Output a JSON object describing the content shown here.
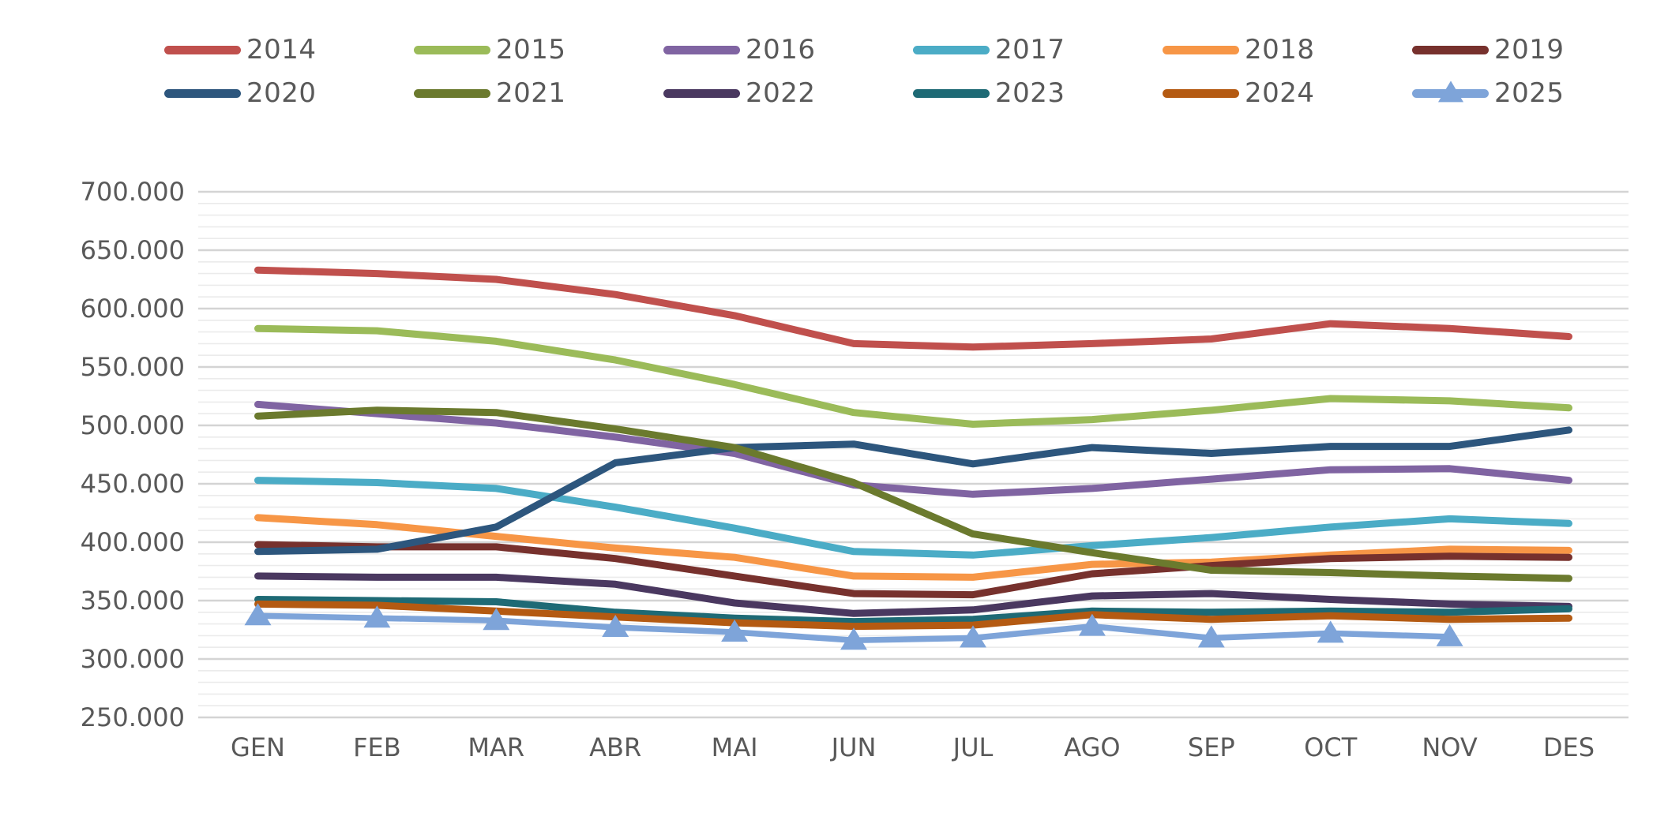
{
  "chart_data": {
    "type": "line",
    "title": "",
    "xlabel": "",
    "ylabel": "",
    "categories": [
      "GEN",
      "FEB",
      "MAR",
      "ABR",
      "MAI",
      "JUN",
      "JUL",
      "AGO",
      "SEP",
      "OCT",
      "NOV",
      "DES"
    ],
    "series": [
      {
        "name": "2014",
        "color": "#C0504D",
        "marker": "none",
        "values": [
          633000,
          630000,
          625000,
          612000,
          594000,
          570000,
          567000,
          570000,
          574000,
          587000,
          583000,
          576000
        ]
      },
      {
        "name": "2015",
        "color": "#9BBB59",
        "marker": "none",
        "values": [
          583000,
          581000,
          572000,
          556000,
          535000,
          511000,
          501000,
          505000,
          513000,
          523000,
          521000,
          515000
        ]
      },
      {
        "name": "2016",
        "color": "#8064A2",
        "marker": "none",
        "values": [
          518000,
          510000,
          502000,
          490000,
          476000,
          449000,
          441000,
          446000,
          454000,
          462000,
          463000,
          453000
        ]
      },
      {
        "name": "2017",
        "color": "#4BACC6",
        "marker": "none",
        "values": [
          453000,
          451000,
          446000,
          430000,
          412000,
          392000,
          389000,
          397000,
          404000,
          413000,
          420000,
          416000
        ]
      },
      {
        "name": "2018",
        "color": "#F79646",
        "marker": "none",
        "values": [
          421000,
          415000,
          405000,
          395000,
          387000,
          371000,
          370000,
          381000,
          383000,
          389000,
          394000,
          393000
        ]
      },
      {
        "name": "2019",
        "color": "#77312D",
        "marker": "none",
        "values": [
          398000,
          396000,
          396000,
          386000,
          371000,
          356000,
          355000,
          373000,
          380000,
          386000,
          388000,
          387000
        ]
      },
      {
        "name": "2020",
        "color": "#2D567D",
        "marker": "none",
        "values": [
          392000,
          394000,
          413000,
          468000,
          481000,
          484000,
          467000,
          481000,
          476000,
          482000,
          482000,
          496000
        ]
      },
      {
        "name": "2021",
        "color": "#6B7A2E",
        "marker": "none",
        "values": [
          508000,
          513000,
          511000,
          497000,
          481000,
          451000,
          407000,
          391000,
          376000,
          374000,
          371000,
          369000
        ]
      },
      {
        "name": "2022",
        "color": "#4A3860",
        "marker": "none",
        "values": [
          371000,
          370000,
          370000,
          364000,
          348000,
          339000,
          342000,
          354000,
          356000,
          351000,
          347000,
          345000
        ]
      },
      {
        "name": "2023",
        "color": "#1E6A75",
        "marker": "none",
        "values": [
          351000,
          350000,
          349000,
          340000,
          335000,
          332000,
          334000,
          341000,
          340000,
          341000,
          340000,
          343000
        ]
      },
      {
        "name": "2024",
        "color": "#B45A12",
        "marker": "none",
        "values": [
          347000,
          346000,
          341000,
          336000,
          331000,
          328000,
          329000,
          338000,
          334000,
          337000,
          334000,
          335000
        ]
      },
      {
        "name": "2025",
        "color": "#7EA4D9",
        "marker": "triangle",
        "values": [
          337000,
          335000,
          333000,
          327000,
          323000,
          316000,
          318000,
          328000,
          318000,
          322000,
          319000,
          null
        ]
      }
    ],
    "ylim": [
      250000,
      700000
    ],
    "ytick_step": 50000,
    "ytick_minor_step": 10000,
    "ytick_labels": [
      "250.000",
      "300.000",
      "350.000",
      "400.000",
      "450.000",
      "500.000",
      "550.000",
      "600.000",
      "650.000",
      "700.000"
    ],
    "grid": "horizontal",
    "legend_position": "top",
    "legend_columns": 6,
    "axis_text_color": "#595959",
    "gridline_major_color": "#D4D4D4",
    "gridline_minor_color": "#EBEBEB",
    "background": "#FFFFFF"
  }
}
